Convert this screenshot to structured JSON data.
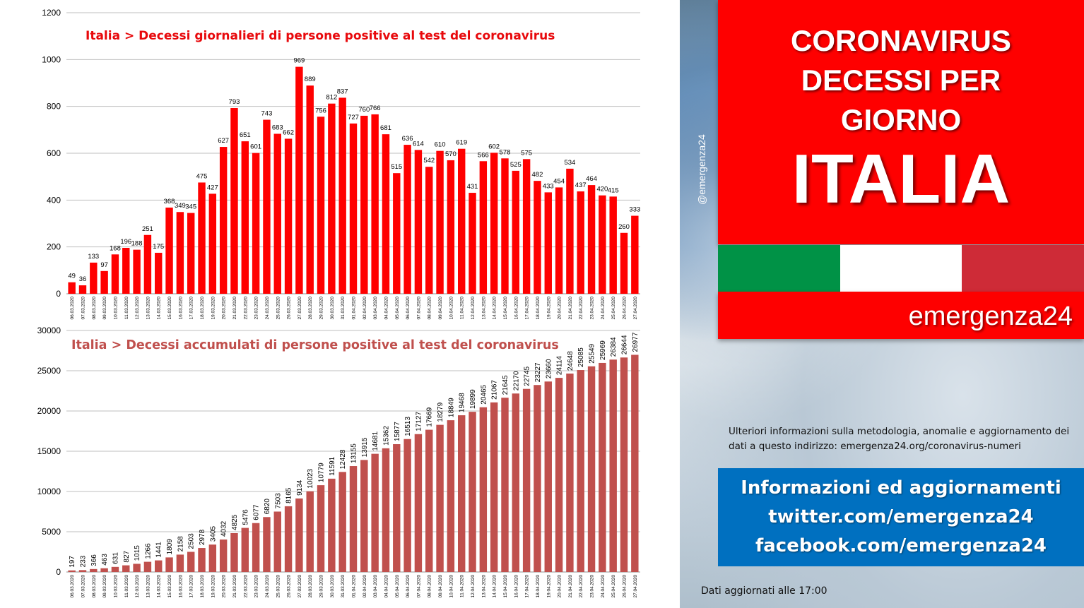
{
  "chart_data": [
    {
      "type": "bar",
      "title": "Italia > Decessi giornalieri di persone positive al test del coronavirus",
      "color": "#ff0000",
      "ylim": [
        0,
        1200
      ],
      "yticks": [
        0,
        200,
        400,
        600,
        800,
        1000,
        1200
      ],
      "grid": true,
      "categories": [
        "06.03.2020",
        "07.03.2020",
        "08.03.2020",
        "09.03.2020",
        "10.03.2020",
        "11.03.2020",
        "12.03.2020",
        "13.03.2020",
        "14.03.2020",
        "15.03.2020",
        "16.03.2020",
        "17.03.2020",
        "18.03.2020",
        "19.03.2020",
        "20.03.2020",
        "21.03.2020",
        "22.03.2020",
        "23.03.2020",
        "24.03.2020",
        "25.03.2020",
        "26.03.2020",
        "27.03.2020",
        "28.03.2020",
        "29.03.2020",
        "30.03.2020",
        "31.03.2020",
        "01.04.2020",
        "02.04.2020",
        "03.04.2020",
        "04.04.2020",
        "05.04.2020",
        "06.04.2020",
        "07.04.2020",
        "08.04.2020",
        "09.04.2020",
        "10.04.2020",
        "11.04.2020",
        "12.04.2020",
        "13.04.2020",
        "14.04.2020",
        "15.04.2020",
        "16.04.2020",
        "17.04.2020",
        "18.04.2020",
        "19.04.2020",
        "20.04.2020",
        "21.04.2020",
        "22.04.2020",
        "23.04.2020",
        "24.04.2020",
        "25.04.2020",
        "26.04.2020",
        "27.04.2020"
      ],
      "values": [
        49,
        36,
        133,
        97,
        168,
        196,
        188,
        251,
        175,
        368,
        349,
        345,
        475,
        427,
        627,
        793,
        651,
        601,
        743,
        683,
        662,
        969,
        889,
        756,
        812,
        837,
        727,
        760,
        766,
        681,
        515,
        636,
        614,
        542,
        610,
        570,
        619,
        431,
        566,
        602,
        578,
        525,
        575,
        482,
        433,
        454,
        534,
        437,
        464,
        420,
        415,
        260,
        333
      ]
    },
    {
      "type": "bar",
      "title": "Italia > Decessi accumulati di persone positive al test del coronavirus",
      "color": "#c0504d",
      "ylim": [
        0,
        30000
      ],
      "yticks": [
        0,
        5000,
        10000,
        15000,
        20000,
        25000,
        30000
      ],
      "grid": true,
      "categories": [
        "06.03.2020",
        "07.03.2020",
        "08.03.2020",
        "09.03.2020",
        "10.03.2020",
        "11.03.2020",
        "12.03.2020",
        "13.03.2020",
        "14.03.2020",
        "15.03.2020",
        "16.03.2020",
        "17.03.2020",
        "18.03.2020",
        "19.03.2020",
        "20.03.2020",
        "21.03.2020",
        "22.03.2020",
        "23.03.2020",
        "24.03.2020",
        "25.03.2020",
        "26.03.2020",
        "27.03.2020",
        "28.03.2020",
        "29.03.2020",
        "30.03.2020",
        "31.03.2020",
        "01.04.2020",
        "02.04.2020",
        "03.04.2020",
        "04.04.2020",
        "05.04.2020",
        "06.04.2020",
        "07.04.2020",
        "08.04.2020",
        "09.04.2020",
        "10.04.2020",
        "11.04.2020",
        "12.04.2020",
        "13.04.2020",
        "14.04.2020",
        "15.04.2020",
        "16.04.2020",
        "17.04.2020",
        "18.04.2020",
        "19.04.2020",
        "20.04.2020",
        "21.04.2020",
        "22.04.2020",
        "23.04.2020",
        "24.04.2020",
        "25.04.2020",
        "26.04.2020",
        "27.04.2020"
      ],
      "values": [
        197,
        233,
        366,
        463,
        631,
        827,
        1015,
        1266,
        1441,
        1809,
        2158,
        2503,
        2978,
        3405,
        4032,
        4825,
        5476,
        6077,
        6820,
        7503,
        8165,
        9134,
        10023,
        10779,
        11591,
        12428,
        13155,
        13915,
        14681,
        15362,
        15877,
        16513,
        17127,
        17669,
        18279,
        18849,
        19468,
        19899,
        20465,
        21067,
        21645,
        22170,
        22745,
        23227,
        23660,
        24114,
        24648,
        25085,
        25549,
        25969,
        26384,
        26644,
        26977
      ]
    }
  ],
  "panel": {
    "handle": "@emergenza24",
    "headline_lines": [
      "CORONAVIRUS",
      "DECESSI PER",
      "GIORNO"
    ],
    "country": "ITALIA",
    "brand": "emergenza24",
    "flag_colors": [
      "#009246",
      "#ffffff",
      "#ce2b37"
    ],
    "info_text": "Ulteriori informazioni sulla metodologia, anomalie e aggiornamento dei dati a questo indirizzo: emergenza24.org/coronavirus-numeri",
    "blue_box": [
      "Informazioni ed aggiornamenti",
      "twitter.com/emergenza24",
      "facebook.com/emergenza24"
    ],
    "updated": "Dati aggiornati alle 17:00"
  }
}
